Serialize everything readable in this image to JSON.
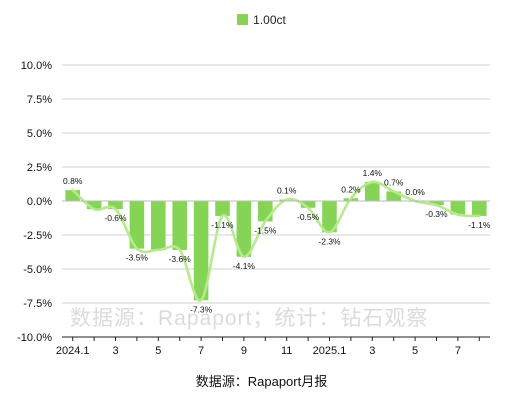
{
  "legend": {
    "label": "1.00ct"
  },
  "watermark": "数据源：Rapaport；统计：钻石观察",
  "source": "数据源：Rapaport月报",
  "colors": {
    "bar": "#86d455",
    "line": "#b7ea8e",
    "grid": "#d0d0d0",
    "axis": "#222222"
  },
  "chart_data": {
    "type": "bar",
    "series": [
      {
        "name": "1.00ct",
        "values": [
          0.8,
          -0.6,
          -0.6,
          -3.5,
          -3.6,
          -3.6,
          -7.3,
          -1.1,
          -4.1,
          -1.5,
          0.1,
          -0.5,
          -2.3,
          0.2,
          1.4,
          0.7,
          0.0,
          -0.3,
          -1.0,
          -1.1
        ]
      }
    ],
    "data_labels": [
      "0.8%",
      "",
      "-0.6%",
      "-3.5%",
      "",
      "-3.6%",
      "-7.3%",
      "-1.1%",
      "-4.1%",
      "-1.5%",
      "0.1%",
      "-0.5%",
      "-2.3%",
      "0.2%",
      "1.4%",
      "0.7%",
      "0.0%",
      "-0.3%",
      "",
      "-1.1%"
    ],
    "x_tick_labels": [
      "2024.1",
      "",
      "3",
      "",
      "5",
      "",
      "7",
      "",
      "9",
      "",
      "11",
      "",
      "2025.1",
      "",
      "3",
      "",
      "5",
      "",
      "7",
      ""
    ],
    "y_ticks": [
      "10.0%",
      "7.5%",
      "5.0%",
      "2.5%",
      "0.0%",
      "-2.5%",
      "-5.0%",
      "-7.5%",
      "-10.0%"
    ],
    "ylim": [
      -10,
      10
    ],
    "ytick_step": 2.5,
    "trend_line": true,
    "grid": true,
    "legend_position": "top"
  }
}
